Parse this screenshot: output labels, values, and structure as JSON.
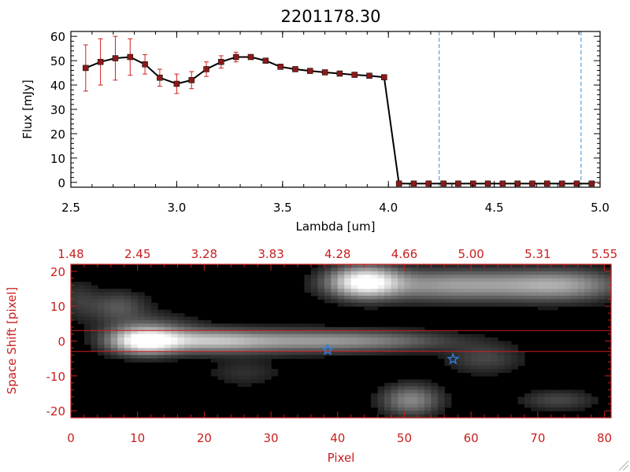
{
  "colors": {
    "data_line": "#000000",
    "marker": "#8b1a1a",
    "errorbar": "#d02020",
    "vline": "#3b8fd0",
    "panel2_frame": "#c81e1e",
    "star": "#2f7fe0",
    "background": "#ffffff"
  },
  "chart_data": [
    {
      "type": "line",
      "title": "2201178.30",
      "xlabel": "Lambda [um]",
      "ylabel": "Flux [mJy]",
      "xlim": [
        2.5,
        5.0
      ],
      "ylim": [
        -2,
        62
      ],
      "xticks": [
        "2.5",
        "3.0",
        "3.5",
        "4.0",
        "4.5",
        "5.0"
      ],
      "xtick_values": [
        2.5,
        3.0,
        3.5,
        4.0,
        4.5,
        5.0
      ],
      "yticks": [
        "0",
        "10",
        "20",
        "30",
        "40",
        "50",
        "60"
      ],
      "ytick_values": [
        0,
        10,
        20,
        30,
        40,
        50,
        60
      ],
      "grid": false,
      "series": [
        {
          "x": [
            2.57,
            2.64,
            2.71,
            2.78,
            2.85,
            2.92,
            3.0,
            3.07,
            3.14,
            3.21,
            3.28,
            3.35,
            3.42,
            3.49,
            3.56,
            3.63,
            3.7,
            3.77,
            3.84,
            3.91,
            3.98,
            4.05,
            4.12,
            4.19,
            4.26,
            4.33,
            4.4,
            4.47,
            4.54,
            4.61,
            4.68,
            4.75,
            4.82,
            4.89,
            4.96
          ],
          "y": [
            47,
            49.5,
            51,
            51.5,
            48.5,
            43,
            40.5,
            42,
            46.5,
            49.5,
            51.5,
            51.5,
            50,
            47.5,
            46.5,
            45.8,
            45.2,
            44.7,
            44.2,
            43.8,
            43.2,
            -0.5,
            -0.5,
            -0.5,
            -0.5,
            -0.5,
            -0.5,
            -0.5,
            -0.5,
            -0.5,
            -0.5,
            -0.5,
            -0.5,
            -0.5,
            -0.5
          ],
          "yerr": [
            9.5,
            9.5,
            9,
            7.5,
            4,
            3.5,
            4,
            3.5,
            3,
            2.5,
            2,
            1,
            0.6,
            0.5,
            0.5,
            0.5,
            0.5,
            0.5,
            0.5,
            0.5,
            0.5,
            0.2,
            0.2,
            0.2,
            0.2,
            0.2,
            0.2,
            0.2,
            0.2,
            0.2,
            0.2,
            0.2,
            0.2,
            0.2,
            0.2
          ]
        }
      ],
      "vlines": [
        4.24,
        4.91
      ]
    },
    {
      "type": "heatmap",
      "xlabel": "Pixel",
      "ylabel": "Space Shift [pixel]",
      "xlim": [
        0,
        81
      ],
      "ylim": [
        -22,
        22
      ],
      "xticks": [
        "0",
        "10",
        "20",
        "30",
        "40",
        "50",
        "60",
        "70",
        "80"
      ],
      "xtick_values": [
        0,
        10,
        20,
        30,
        40,
        50,
        60,
        70,
        80
      ],
      "yticks": [
        "-20",
        "-10",
        "0",
        "10",
        "20"
      ],
      "ytick_values": [
        -20,
        -10,
        0,
        10,
        20
      ],
      "top_xticks": [
        "1.48",
        "2.45",
        "3.28",
        "3.83",
        "4.28",
        "4.66",
        "5.00",
        "5.31",
        "5.55"
      ],
      "hlines": [
        3,
        -3
      ],
      "stars": [
        {
          "x": 38.5,
          "y": -2.5
        },
        {
          "x": 57.3,
          "y": -5.2
        }
      ],
      "sources": [
        {
          "x": 11,
          "y": 0,
          "sx": 3.5,
          "sy": 2.5,
          "amp": 1.0
        },
        {
          "x": 20,
          "y": 0,
          "sx": 6,
          "sy": 2.2,
          "amp": 0.55
        },
        {
          "x": 33,
          "y": 0,
          "sx": 9,
          "sy": 2.2,
          "amp": 0.45
        },
        {
          "x": 47,
          "y": 0,
          "sx": 8,
          "sy": 2.0,
          "amp": 0.28
        },
        {
          "x": 44,
          "y": 17,
          "sx": 3.5,
          "sy": 3,
          "amp": 0.95
        },
        {
          "x": 58,
          "y": 16,
          "sx": 10,
          "sy": 3,
          "amp": 0.55
        },
        {
          "x": 74,
          "y": 16,
          "sx": 6,
          "sy": 3,
          "amp": 0.45
        },
        {
          "x": 51,
          "y": -17,
          "sx": 3,
          "sy": 3,
          "amp": 0.45
        },
        {
          "x": 7,
          "y": 10,
          "sx": 3,
          "sy": 3,
          "amp": 0.25
        },
        {
          "x": 12,
          "y": 4,
          "sx": 5,
          "sy": 3,
          "amp": 0.18
        },
        {
          "x": 62,
          "y": -5,
          "sx": 4,
          "sy": 3,
          "amp": 0.2
        },
        {
          "x": 73,
          "y": -17,
          "sx": 4,
          "sy": 2,
          "amp": 0.2
        },
        {
          "x": 26,
          "y": -9,
          "sx": 4,
          "sy": 3,
          "amp": 0.12
        },
        {
          "x": 1,
          "y": 12,
          "sx": 2,
          "sy": 4,
          "amp": 0.14
        }
      ]
    }
  ]
}
